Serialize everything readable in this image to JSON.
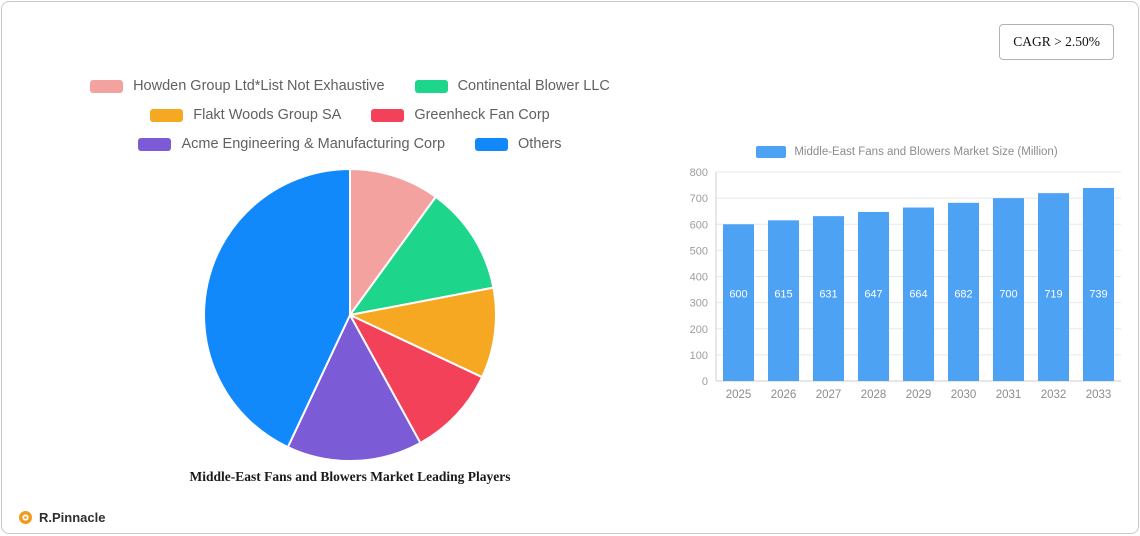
{
  "badge": {
    "label": "CAGR > 2.50%"
  },
  "logo": {
    "text": "R.Pinnacle"
  },
  "pie_section": {
    "title": "Middle-East Fans and Blowers Market Leading Players"
  },
  "bar_section": {
    "legend_label": "Middle-East Fans and Blowers Market Size (Million)"
  },
  "pie_legend_rows": [
    [
      0,
      1
    ],
    [
      2,
      3
    ],
    [
      4,
      5
    ]
  ],
  "chart_data": [
    {
      "type": "pie",
      "title": "Middle-East Fans and Blowers Market Leading Players",
      "labels": [
        "Howden Group Ltd*List Not Exhaustive",
        "Continental Blower LLC",
        "Flakt Woods Group SA",
        "Greenheck Fan Corp",
        "Acme Engineering & Manufacturing Corp",
        "Others"
      ],
      "values": [
        10,
        12,
        10,
        10,
        15,
        43
      ],
      "colors": [
        "#F4A2A0",
        "#1ED68B",
        "#F7A823",
        "#F4415A",
        "#7B5BD6",
        "#1289FA"
      ],
      "start_angle": "top",
      "direction": "clockwise",
      "legend_position": "top"
    },
    {
      "type": "bar",
      "title": "Middle-East Fans and Blowers Market Size (Million)",
      "categories": [
        "2025",
        "2026",
        "2027",
        "2028",
        "2029",
        "2030",
        "2031",
        "2032",
        "2033"
      ],
      "values": [
        600,
        615,
        631,
        647,
        664,
        682,
        700,
        719,
        739
      ],
      "ylim": [
        0,
        800
      ],
      "yticks": [
        0,
        100,
        200,
        300,
        400,
        500,
        600,
        700,
        800
      ],
      "bar_color": "#4DA2F4",
      "grid": true,
      "legend_position": "top",
      "value_labels": "inside-white"
    }
  ]
}
